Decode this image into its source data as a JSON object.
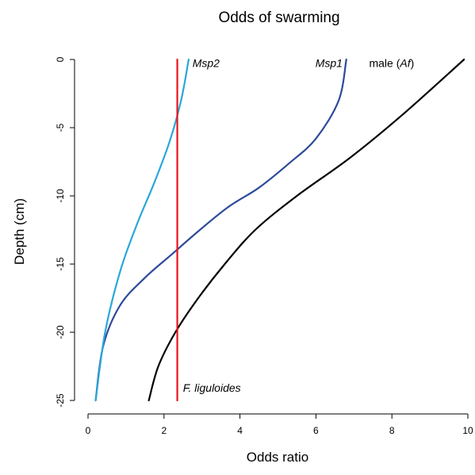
{
  "chart_data": {
    "type": "line",
    "title": "Odds of swarming",
    "xlabel": "Odds ratio",
    "ylabel": "Depth (cm)",
    "xlim": [
      0,
      10
    ],
    "ylim": [
      -25,
      0
    ],
    "xticks": [
      0,
      2,
      4,
      6,
      8,
      10
    ],
    "yticks": [
      0,
      -5,
      -10,
      -15,
      -20,
      -25
    ],
    "xtick_labels": [
      "0",
      "2",
      "4",
      "6",
      "8",
      "10"
    ],
    "ytick_labels": [
      "0",
      "-5",
      "-10",
      "-15",
      "-20",
      "-25"
    ],
    "grid": false,
    "legend": "none",
    "series": [
      {
        "name": "male (Af)",
        "label_prefix": "male (",
        "label_italic": "Af",
        "label_suffix": ")",
        "color": "#000000",
        "x": [
          1.6,
          1.85,
          2.3,
          2.9,
          3.6,
          4.4,
          5.5,
          6.9,
          8.3,
          9.9
        ],
        "y": [
          -25,
          -22.5,
          -20,
          -17.5,
          -15,
          -12.5,
          -10,
          -7.2,
          -4,
          0
        ]
      },
      {
        "name": "Msp1",
        "label_prefix": "",
        "label_italic": "Msp1",
        "label_suffix": "",
        "color": "#2d4a9a",
        "x": [
          0.2,
          0.4,
          0.85,
          1.5,
          2.2,
          2.9,
          3.7,
          4.5,
          5.3,
          6.0,
          6.6,
          6.8
        ],
        "y": [
          -25,
          -21,
          -18,
          -16,
          -14.3,
          -12.6,
          -10.8,
          -9.4,
          -7.6,
          -5.8,
          -3,
          0
        ]
      },
      {
        "name": "Msp2",
        "label_prefix": "",
        "label_italic": "Msp2",
        "label_suffix": "",
        "color": "#2aa7d8",
        "x": [
          0.2,
          0.45,
          0.85,
          1.3,
          1.75,
          2.15,
          2.45,
          2.65
        ],
        "y": [
          -25,
          -20,
          -15.5,
          -12,
          -9,
          -6,
          -3,
          0
        ]
      },
      {
        "name": "F. liguloides",
        "label_prefix": "",
        "label_italic": "F. liguloides",
        "label_suffix": "",
        "color": "#e8141c",
        "x": [
          2.35,
          2.35
        ],
        "y": [
          -25,
          0
        ]
      }
    ]
  }
}
